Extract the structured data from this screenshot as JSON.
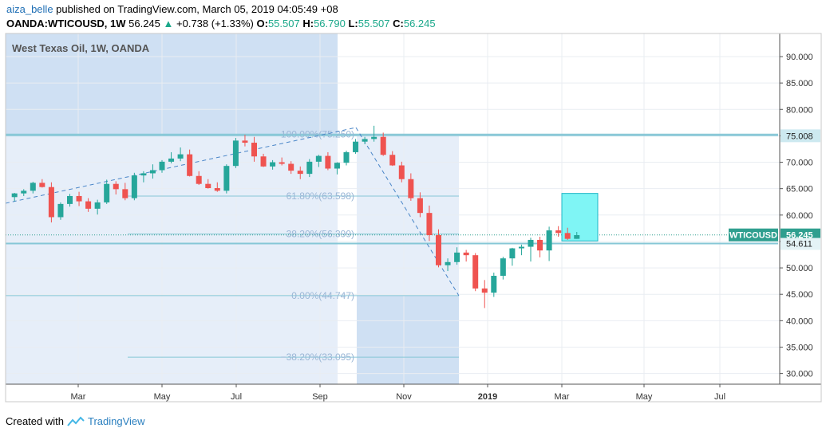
{
  "header": {
    "author": "aiza_belle",
    "published_text": "published on TradingView.com, March 05, 2019 04:05:49 +08",
    "symbol_line": "OANDA:WTICOUSD, 1W",
    "last": "56.245",
    "change": "+0.738 (+1.33%)",
    "o_label": "O:",
    "o_value": "55.507",
    "h_label": "H:",
    "h_value": "56.790",
    "l_label": "L:",
    "l_value": "55.507",
    "c_label": "C:",
    "c_value": "56.245"
  },
  "chart_title": "West Texas Oil, 1W, OANDA",
  "footer": {
    "created_with": "Created with",
    "brand": "TradingView"
  },
  "colors": {
    "up": "#26a69a",
    "down": "#ef5350",
    "fib_line": "#86c7d6",
    "shade": "#d6e4f3",
    "target_box": "#7ff5f5",
    "tag_bg": "#2f9f8f"
  },
  "chart_data": {
    "type": "candlestick",
    "title": "West Texas Oil, 1W, OANDA",
    "ylim": [
      27.5,
      93.5
    ],
    "y_ticks": [
      "90.000",
      "85.000",
      "80.000",
      "75.000",
      "70.000",
      "65.000",
      "60.000",
      "55.000",
      "50.000",
      "45.000",
      "40.000",
      "35.000",
      "30.000"
    ],
    "x_ticks": [
      "Mar",
      "May",
      "Jul",
      "Sep",
      "Nov",
      "2019",
      "Mar",
      "May",
      "Jul"
    ],
    "grid": true,
    "candles": [
      [
        63.4,
        64.2,
        62.6,
        64.1
      ],
      [
        64.1,
        64.9,
        63.6,
        64.6
      ],
      [
        64.6,
        66.3,
        64.1,
        66.1
      ],
      [
        66.1,
        66.8,
        65.2,
        65.3
      ],
      [
        65.3,
        66.2,
        58.6,
        59.6
      ],
      [
        59.6,
        62.4,
        59.1,
        62.1
      ],
      [
        62.1,
        64.0,
        61.6,
        63.6
      ],
      [
        63.6,
        64.4,
        61.7,
        62.6
      ],
      [
        62.6,
        63.2,
        60.6,
        61.2
      ],
      [
        61.2,
        62.9,
        60.1,
        62.4
      ],
      [
        62.4,
        66.7,
        62.1,
        65.9
      ],
      [
        65.9,
        66.4,
        63.9,
        64.9
      ],
      [
        64.9,
        66.1,
        62.8,
        63.2
      ],
      [
        63.2,
        68.0,
        62.8,
        67.5
      ],
      [
        67.5,
        68.3,
        66.2,
        67.9
      ],
      [
        67.9,
        69.6,
        66.9,
        68.5
      ],
      [
        68.5,
        70.4,
        68.0,
        70.1
      ],
      [
        70.1,
        71.9,
        69.8,
        70.7
      ],
      [
        70.7,
        72.8,
        70.2,
        71.5
      ],
      [
        71.5,
        72.4,
        67.3,
        67.4
      ],
      [
        67.4,
        68.3,
        65.7,
        65.9
      ],
      [
        65.9,
        66.8,
        65.0,
        65.1
      ],
      [
        65.1,
        66.2,
        64.4,
        64.6
      ],
      [
        64.6,
        69.6,
        64.1,
        69.3
      ],
      [
        69.3,
        74.6,
        68.9,
        74.1
      ],
      [
        74.1,
        75.2,
        73.0,
        73.7
      ],
      [
        73.7,
        74.8,
        70.1,
        71.1
      ],
      [
        71.1,
        71.6,
        69.1,
        69.2
      ],
      [
        69.2,
        70.4,
        68.6,
        70.0
      ],
      [
        70.0,
        70.9,
        69.4,
        69.7
      ],
      [
        69.7,
        70.2,
        67.8,
        68.4
      ],
      [
        68.4,
        69.2,
        66.8,
        67.8
      ],
      [
        67.8,
        70.6,
        67.2,
        70.1
      ],
      [
        70.1,
        71.4,
        69.1,
        71.2
      ],
      [
        71.2,
        71.9,
        68.5,
        68.8
      ],
      [
        68.8,
        70.0,
        67.7,
        69.9
      ],
      [
        69.9,
        72.2,
        69.4,
        71.9
      ],
      [
        71.9,
        74.4,
        71.6,
        73.9
      ],
      [
        73.9,
        74.8,
        73.4,
        74.4
      ],
      [
        74.4,
        76.9,
        73.9,
        74.8
      ],
      [
        74.8,
        75.6,
        71.2,
        71.4
      ],
      [
        71.4,
        72.1,
        69.3,
        69.4
      ],
      [
        69.4,
        70.1,
        66.2,
        66.8
      ],
      [
        66.8,
        67.9,
        62.7,
        63.2
      ],
      [
        63.2,
        64.3,
        59.6,
        60.4
      ],
      [
        60.4,
        61.8,
        55.1,
        56.2
      ],
      [
        56.2,
        57.3,
        50.1,
        50.5
      ],
      [
        50.5,
        51.8,
        49.4,
        51.1
      ],
      [
        51.1,
        53.9,
        50.6,
        52.9
      ],
      [
        52.9,
        53.4,
        51.2,
        52.4
      ],
      [
        52.4,
        52.8,
        45.6,
        46.1
      ],
      [
        46.1,
        47.7,
        42.4,
        45.3
      ],
      [
        45.3,
        49.1,
        44.5,
        48.5
      ],
      [
        48.5,
        52.1,
        47.8,
        51.8
      ],
      [
        51.8,
        53.8,
        50.4,
        53.7
      ],
      [
        53.7,
        54.4,
        52.4,
        54.0
      ],
      [
        54.0,
        55.7,
        51.2,
        55.3
      ],
      [
        55.3,
        55.9,
        52.0,
        53.3
      ],
      [
        53.3,
        57.8,
        51.3,
        57.1
      ],
      [
        57.1,
        57.9,
        55.9,
        56.6
      ],
      [
        56.6,
        57.6,
        55.3,
        55.5
      ],
      [
        55.5,
        56.8,
        55.5,
        56.2
      ]
    ],
    "fib_levels": [
      {
        "label": "100.00%(75.250)",
        "value": 75.25
      },
      {
        "label": "61.80%(63.598)",
        "value": 63.598
      },
      {
        "label": "38.20%(56.399)",
        "value": 56.399
      },
      {
        "label": "0.00%(44.747)",
        "value": 44.747
      },
      {
        "label": "−38.20%(33.095)",
        "value": 33.095
      }
    ],
    "price_tags": [
      {
        "label": "75.008",
        "value": 75.008
      },
      {
        "label": "WTICOUSD",
        "price": "56.245",
        "value": 56.245
      },
      {
        "label": "54.611",
        "value": 54.611
      }
    ],
    "target_box": {
      "from": 64.1,
      "to": 55.1
    }
  }
}
